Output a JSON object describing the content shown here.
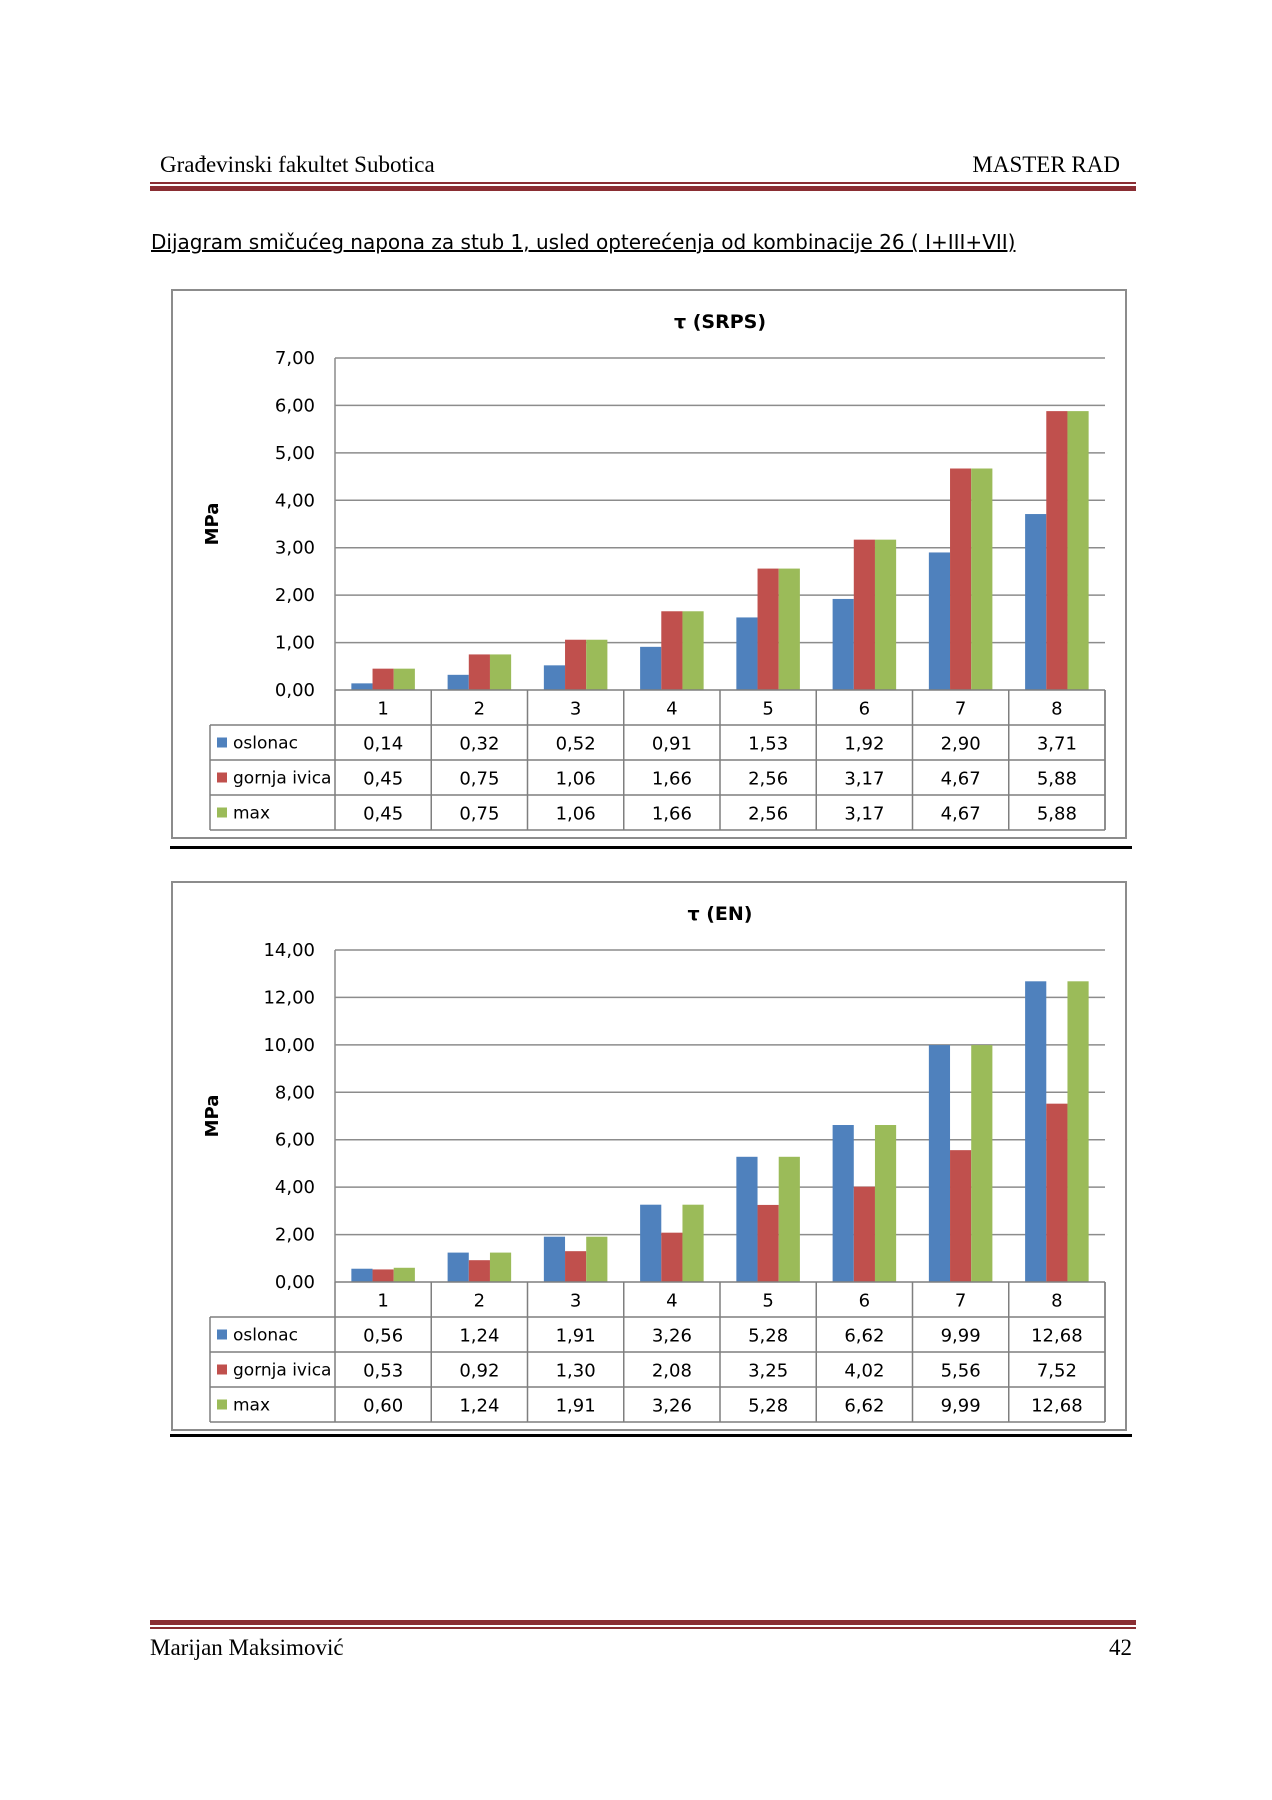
{
  "header": {
    "left": "Građevinski fakultet Subotica",
    "right": "MASTER RAD"
  },
  "subtitle": "Dijagram smičućeg napona za stub 1, usled opterećenja od kombinacije 26 ( I+III+VII)",
  "footer": {
    "author": "Marijan Maksimović",
    "page": "42"
  },
  "colors": {
    "oslonac": "#4f81bd",
    "gornja_ivica": "#c0504d",
    "max": "#9bbb59",
    "rule": "#8a2e33"
  },
  "chart_data": [
    {
      "type": "bar",
      "title": "τ  (SRPS)",
      "ylabel": "MPa",
      "xlabel": "",
      "ylim": [
        0,
        7
      ],
      "yticks": [
        "0,00",
        "1,00",
        "2,00",
        "3,00",
        "4,00",
        "5,00",
        "6,00",
        "7,00"
      ],
      "categories": [
        "1",
        "2",
        "3",
        "4",
        "5",
        "6",
        "7",
        "8"
      ],
      "series": [
        {
          "name": "oslonac",
          "values": [
            0.14,
            0.32,
            0.52,
            0.91,
            1.53,
            1.92,
            2.9,
            3.71
          ],
          "labels": [
            "0,14",
            "0,32",
            "0,52",
            "0,91",
            "1,53",
            "1,92",
            "2,90",
            "3,71"
          ]
        },
        {
          "name": "gornja ivica",
          "values": [
            0.45,
            0.75,
            1.06,
            1.66,
            2.56,
            3.17,
            4.67,
            5.88
          ],
          "labels": [
            "0,45",
            "0,75",
            "1,06",
            "1,66",
            "2,56",
            "3,17",
            "4,67",
            "5,88"
          ]
        },
        {
          "name": "max",
          "values": [
            0.45,
            0.75,
            1.06,
            1.66,
            2.56,
            3.17,
            4.67,
            5.88
          ],
          "labels": [
            "0,45",
            "0,75",
            "1,06",
            "1,66",
            "2,56",
            "3,17",
            "4,67",
            "5,88"
          ]
        }
      ]
    },
    {
      "type": "bar",
      "title": "τ (EN)",
      "ylabel": "MPa",
      "xlabel": "",
      "ylim": [
        0,
        14
      ],
      "yticks": [
        "0,00",
        "2,00",
        "4,00",
        "6,00",
        "8,00",
        "10,00",
        "12,00",
        "14,00"
      ],
      "categories": [
        "1",
        "2",
        "3",
        "4",
        "5",
        "6",
        "7",
        "8"
      ],
      "series": [
        {
          "name": "oslonac",
          "values": [
            0.56,
            1.24,
            1.91,
            3.26,
            5.28,
            6.62,
            9.99,
            12.68
          ],
          "labels": [
            "0,56",
            "1,24",
            "1,91",
            "3,26",
            "5,28",
            "6,62",
            "9,99",
            "12,68"
          ]
        },
        {
          "name": "gornja ivica",
          "values": [
            0.53,
            0.92,
            1.3,
            2.08,
            3.25,
            4.02,
            5.56,
            7.52
          ],
          "labels": [
            "0,53",
            "0,92",
            "1,30",
            "2,08",
            "3,25",
            "4,02",
            "5,56",
            "7,52"
          ]
        },
        {
          "name": "max",
          "values": [
            0.6,
            1.24,
            1.91,
            3.26,
            5.28,
            6.62,
            9.99,
            12.68
          ],
          "labels": [
            "0,60",
            "1,24",
            "1,91",
            "3,26",
            "5,28",
            "6,62",
            "9,99",
            "12,68"
          ]
        }
      ]
    }
  ]
}
